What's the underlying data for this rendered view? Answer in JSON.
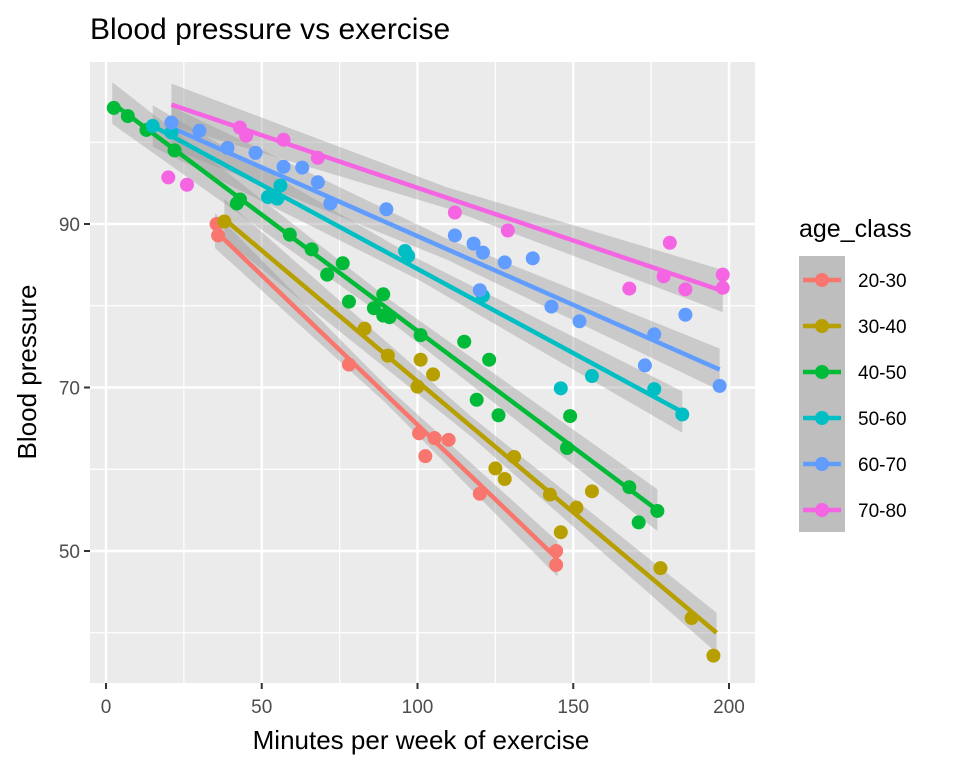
{
  "chart_data": {
    "type": "scatter",
    "title": "Blood pressure vs exercise",
    "xlabel": "Minutes per week of exercise",
    "ylabel": "Blood pressure",
    "xlim": [
      -5,
      208
    ],
    "ylim": [
      34,
      109
    ],
    "x_ticks": [
      0,
      50,
      100,
      150,
      200
    ],
    "x_tick_labels": [
      "0",
      "50",
      "100",
      "150",
      "200"
    ],
    "y_ticks": [
      50,
      70,
      90
    ],
    "y_tick_labels": [
      "50",
      "70",
      "90"
    ],
    "y_minor_ticks": [
      40,
      60,
      80,
      100
    ],
    "x_minor_ticks": [
      25,
      75,
      125,
      175
    ],
    "grid": true,
    "legend": {
      "title": "age_class",
      "position": "right"
    },
    "smoother": "lm with confidence band",
    "series": [
      {
        "name": "20-30",
        "color": "#F8766D",
        "points": [
          [
            35.5,
            90.0
          ],
          [
            36,
            88.6
          ],
          [
            78,
            72.8
          ],
          [
            100.5,
            64.4
          ],
          [
            102.5,
            61.6
          ],
          [
            105.5,
            63.8
          ],
          [
            110,
            63.6
          ],
          [
            120,
            57.0
          ],
          [
            144.5,
            50.0
          ],
          [
            144.5,
            48.3
          ]
        ],
        "fit": [
          [
            35,
            89.2
          ],
          [
            145,
            49.0
          ]
        ]
      },
      {
        "name": "30-40",
        "color": "#B79F00",
        "points": [
          [
            38,
            90.3
          ],
          [
            83,
            77.2
          ],
          [
            90.5,
            73.9
          ],
          [
            100,
            70.1
          ],
          [
            101,
            73.4
          ],
          [
            105,
            71.6
          ],
          [
            125,
            60.1
          ],
          [
            128,
            58.8
          ],
          [
            131,
            61.5
          ],
          [
            142.5,
            56.9
          ],
          [
            146,
            52.3
          ],
          [
            151,
            55.3
          ],
          [
            156,
            57.3
          ],
          [
            178,
            47.9
          ],
          [
            188,
            41.8
          ],
          [
            195,
            37.2
          ]
        ],
        "fit": [
          [
            38,
            90.6
          ],
          [
            196,
            40.0
          ]
        ]
      },
      {
        "name": "40-50",
        "color": "#00BA38",
        "points": [
          [
            2.5,
            104.2
          ],
          [
            7,
            103.2
          ],
          [
            13,
            101.5
          ],
          [
            22,
            99.0
          ],
          [
            42,
            92.5
          ],
          [
            43,
            93.0
          ],
          [
            59,
            88.7
          ],
          [
            66,
            86.9
          ],
          [
            71,
            83.8
          ],
          [
            76,
            85.2
          ],
          [
            78,
            80.5
          ],
          [
            86,
            79.7
          ],
          [
            89,
            81.4
          ],
          [
            89,
            78.8
          ],
          [
            91,
            78.6
          ],
          [
            101,
            76.4
          ],
          [
            115,
            75.6
          ],
          [
            119,
            68.5
          ],
          [
            123,
            73.4
          ],
          [
            126,
            66.6
          ],
          [
            148,
            62.6
          ],
          [
            149,
            66.5
          ],
          [
            168,
            57.8
          ],
          [
            171,
            53.5
          ],
          [
            177,
            54.9
          ]
        ],
        "fit": [
          [
            2,
            104.8
          ],
          [
            177,
            55.0
          ]
        ]
      },
      {
        "name": "50-60",
        "color": "#00BFC4",
        "points": [
          [
            15,
            102.0
          ],
          [
            21,
            101.2
          ],
          [
            52,
            93.3
          ],
          [
            55,
            93.1
          ],
          [
            56,
            94.7
          ],
          [
            96,
            86.7
          ],
          [
            97,
            86.1
          ],
          [
            121,
            81.2
          ],
          [
            146,
            69.9
          ],
          [
            156,
            71.4
          ],
          [
            176,
            69.8
          ],
          [
            185,
            66.7
          ]
        ],
        "fit": [
          [
            15,
            102.0
          ],
          [
            185,
            67.0
          ]
        ]
      },
      {
        "name": "60-70",
        "color": "#619CFF",
        "points": [
          [
            21,
            102.4
          ],
          [
            30,
            101.4
          ],
          [
            39,
            99.3
          ],
          [
            48,
            98.7
          ],
          [
            57,
            97.0
          ],
          [
            63,
            96.9
          ],
          [
            68,
            95.1
          ],
          [
            72,
            92.5
          ],
          [
            90,
            91.8
          ],
          [
            112,
            88.6
          ],
          [
            118,
            87.6
          ],
          [
            121,
            86.5
          ],
          [
            120,
            81.9
          ],
          [
            128,
            85.3
          ],
          [
            137,
            85.8
          ],
          [
            143,
            79.9
          ],
          [
            152,
            78.1
          ],
          [
            173,
            72.7
          ],
          [
            176,
            76.5
          ],
          [
            186,
            78.9
          ],
          [
            197,
            70.2
          ]
        ],
        "fit": [
          [
            21,
            101.8
          ],
          [
            197,
            72.2
          ]
        ]
      },
      {
        "name": "70-80",
        "color": "#F564E3",
        "points": [
          [
            20,
            95.7
          ],
          [
            26,
            94.8
          ],
          [
            43,
            101.8
          ],
          [
            45,
            100.8
          ],
          [
            57,
            100.3
          ],
          [
            68,
            98.1
          ],
          [
            112,
            91.4
          ],
          [
            129,
            89.2
          ],
          [
            168,
            82.1
          ],
          [
            179,
            83.6
          ],
          [
            181,
            87.7
          ],
          [
            186,
            82.0
          ],
          [
            198,
            83.8
          ],
          [
            198,
            82.2
          ]
        ],
        "fit": [
          [
            21,
            104.6
          ],
          [
            198,
            81.8
          ]
        ]
      }
    ]
  }
}
